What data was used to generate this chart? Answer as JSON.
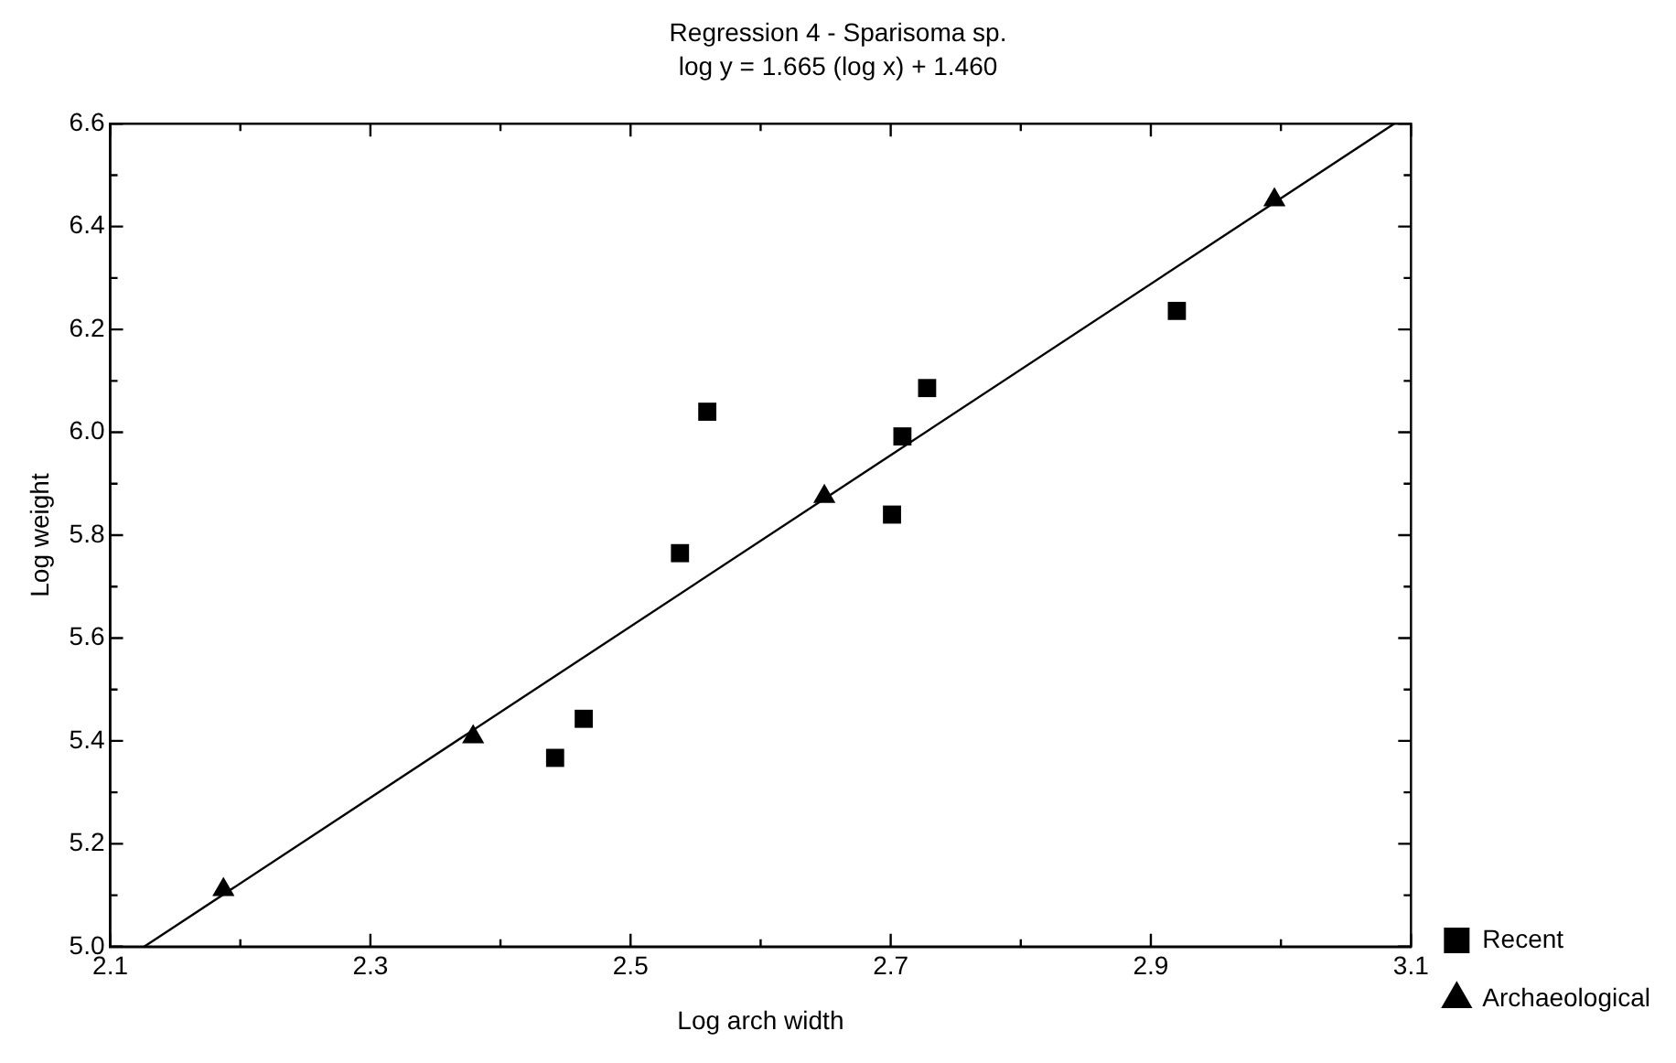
{
  "chart_data": {
    "type": "scatter",
    "title": "Regression 4 - Sparisoma sp.",
    "subtitle": "log y = 1.665 (log x) + 1.460",
    "xlabel": "Log arch width",
    "ylabel": "Log weight",
    "xlim": [
      2.1,
      3.1
    ],
    "xticks": [
      2.1,
      {
        "value": 2.2,
        "label": null
      },
      2.3,
      {
        "value": 2.4,
        "label": null
      },
      2.5,
      {
        "value": 2.6,
        "label": null
      },
      2.7,
      {
        "value": 2.8,
        "label": null
      },
      2.9,
      {
        "value": 3.0,
        "label": null
      },
      3.1
    ],
    "ylim": [
      5.0,
      6.6
    ],
    "yticks": [
      {
        "value": 5.0,
        "label": "5.0"
      },
      {
        "value": 5.1,
        "label": null
      },
      5.2,
      {
        "value": 5.3,
        "label": null
      },
      5.4,
      {
        "value": 5.5,
        "label": null
      },
      5.6,
      {
        "value": 5.7,
        "label": null
      },
      5.8,
      {
        "value": 5.9,
        "label": null
      },
      {
        "value": 6.0,
        "label": "6.0"
      },
      {
        "value": 6.1,
        "label": null
      },
      6.2,
      {
        "value": 6.3,
        "label": null
      },
      6.4,
      {
        "value": 6.5,
        "label": null
      },
      6.6
    ],
    "grid": false,
    "legend": "bottom right",
    "series": [
      {
        "name": "Recent",
        "color": "#000000",
        "marker": "square",
        "x": [
          2.442,
          2.464,
          2.538,
          2.559,
          2.701,
          2.709,
          2.728,
          2.92
        ],
        "values": [
          5.367,
          5.443,
          5.765,
          6.04,
          5.84,
          5.992,
          6.086,
          6.236
        ]
      },
      {
        "name": "Archaeological",
        "color": "#000000",
        "marker": "triangle",
        "x": [
          2.187,
          2.379,
          2.649,
          2.995
        ],
        "values": [
          5.111,
          5.408,
          5.875,
          6.452
        ]
      },
      {
        "type": "line",
        "color": "#000000",
        "marker": "none",
        "line_style": "solid",
        "x": [
          2.1261,
          3.0871
        ],
        "values": [
          5.0,
          6.6
        ]
      }
    ]
  }
}
